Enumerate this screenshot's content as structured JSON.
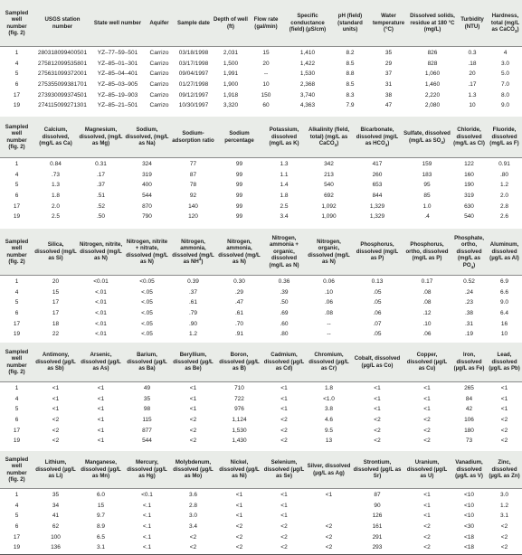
{
  "blocks": [
    {
      "headers": [
        "Sampled well number (fig. 2)",
        "USGS station number",
        "State well number",
        "Aquifer",
        "Sample date",
        "Depth of well (ft)",
        "Flow rate (gal/min)",
        "Specific conductance (field) (µS/cm)",
        "pH (field) (standard units)",
        "Water temperature (°C)",
        "Dissolved solids, residue at 180 °C (mg/L)",
        "Turbidity (NTU)",
        "Hardness, total (mg/L as CaCO<sub>3</sub>)"
      ],
      "rows": [
        [
          "1",
          "280318099400501",
          "YZ–77–59–501",
          "Carrizo",
          "03/18/1998",
          "2,031",
          "15",
          "1,410",
          "8.2",
          "35",
          "826",
          "0.3",
          "4"
        ],
        [
          "4",
          "275812099535801",
          "YZ–85–01–301",
          "Carrizo",
          "03/17/1998",
          "1,500",
          "20",
          "1,422",
          "8.5",
          "29",
          "828",
          ".18",
          "3.0"
        ],
        [
          "5",
          "275631099372001",
          "YZ–85–04–401",
          "Carrizo",
          "09/04/1997",
          "1,991",
          "--",
          "1,530",
          "8.8",
          "37",
          "1,060",
          "20",
          "5.0"
        ],
        [
          "6",
          "275355099381701",
          "YZ–85–03–905",
          "Carrizo",
          "01/27/1998",
          "1,900",
          "10",
          "2,368",
          "8.5",
          "31",
          "1,460",
          ".17",
          "7.0"
        ],
        [
          "17",
          "273930099374501",
          "YZ–85–19–903",
          "Carrizo",
          "09/12/1997",
          "1,918",
          "150",
          "3,740",
          "8.3",
          "38",
          "2,220",
          "1.3",
          "8.0"
        ],
        [
          "19",
          "274115099271301",
          "YZ–85–21–501",
          "Carrizo",
          "10/30/1997",
          "3,320",
          "60",
          "4,363",
          "7.9",
          "47",
          "2,080",
          "10",
          "9.0"
        ]
      ]
    },
    {
      "headers": [
        "Sampled well number (fig. 2)",
        "Calcium, dissolved, (mg/L as Ca)",
        "Magnesium, dissolved, (mg/L as Mg)",
        "Sodium, dissolved, (mg/L as Na)",
        "Sodium-adsorption ratio",
        "Sodium percentage",
        "Potassium, dissolved (mg/L as K)",
        "Alkalinity (field, total) (mg/L as CaCO<sub>3</sub>)",
        "Bicarbonate, dissolved (mg/L as HCO<sub>3</sub>)",
        "Sulfate, dissolved (mg/L as SO<sub>4</sub>)",
        "Chloride, dissolved (mg/L as Cl)",
        "Fluoride, dissolved (mg/L as F)"
      ],
      "rows": [
        [
          "1",
          "0.84",
          "0.31",
          "324",
          "77",
          "99",
          "1.3",
          "342",
          "417",
          "159",
          "122",
          "0.91"
        ],
        [
          "4",
          ".73",
          ".17",
          "319",
          "87",
          "99",
          "1.1",
          "213",
          "260",
          "183",
          "160",
          ".80"
        ],
        [
          "5",
          "1.3",
          ".37",
          "400",
          "78",
          "99",
          "1.4",
          "540",
          "653",
          "95",
          "190",
          "1.2"
        ],
        [
          "6",
          "1.8",
          ".51",
          "544",
          "92",
          "99",
          "1.8",
          "692",
          "844",
          "85",
          "319",
          "2.0"
        ],
        [
          "17",
          "2.0",
          ".52",
          "870",
          "140",
          "99",
          "2.5",
          "1,092",
          "1,329",
          "1.0",
          "630",
          "2.8"
        ],
        [
          "19",
          "2.5",
          ".50",
          "790",
          "120",
          "99",
          "3.4",
          "1,090",
          "1,329",
          ".4",
          "540",
          "2.6"
        ]
      ]
    },
    {
      "headers": [
        "Sampled well number (fig. 2)",
        "Silica, dissolved (mg/L as Si)",
        "Nitrogen, nitrite, dissolved (mg/L as N)",
        "Nitrogen, nitrite + nitrate, dissolved (mg/L as N)",
        "Nitrogen, ammonia, dissolved (mg/L as NH<sup>4</sup>)",
        "Nitrogen, ammonia, dissolved (mg/L as N)",
        "Nitrogen, ammonia + organic, dissolved (mg/L as N)",
        "Nitrogen, organic, dissolved (mg/L as N)",
        "Phosphorus, dissolved (mg/L as P)",
        "Phosphorus, ortho, dissolved (mg/L as P)",
        "Phosphate, ortho, dissolved (mg/L as PO<sub>4</sub>)",
        "Aluminum, dissolved (µg/L as Al)"
      ],
      "rows": [
        [
          "1",
          "20",
          "<0.01",
          "<0.05",
          "0.39",
          "0.30",
          "0.36",
          "0.06",
          "0.13",
          "0.17",
          "0.52",
          "6.9"
        ],
        [
          "4",
          "15",
          "<.01",
          "<.05",
          ".37",
          ".29",
          ".39",
          ".10",
          ".05",
          ".08",
          ".24",
          "6.6"
        ],
        [
          "5",
          "17",
          "<.01",
          "<.05",
          ".61",
          ".47",
          ".50",
          ".06",
          ".05",
          ".08",
          ".23",
          "9.0"
        ],
        [
          "6",
          "17",
          "<.01",
          "<.05",
          ".79",
          ".61",
          ".69",
          ".08",
          ".06",
          ".12",
          ".38",
          "6.4"
        ],
        [
          "17",
          "18",
          "<.01",
          "<.05",
          ".90",
          ".70",
          ".60",
          "--",
          ".07",
          ".10",
          ".31",
          "16"
        ],
        [
          "19",
          "22",
          "<.01",
          "<.05",
          "1.2",
          ".91",
          ".80",
          "--",
          ".05",
          ".06",
          ".19",
          "10"
        ]
      ]
    },
    {
      "headers": [
        "Sampled well number (fig. 2)",
        "Antimony, dissolved (µg/L as Sb)",
        "Arsenic, dissolved (µg/L as As)",
        "Barium, dissolved (µg/L as Ba)",
        "Beryllium, dissolved (µg/L as Be)",
        "Boron, dissolved (µg/L as B)",
        "Cadmium, dissolved (µg/L as Cd)",
        "Chromium, dissolved (µg/L as Cr)",
        "Cobalt, dissolved (µg/L as Co)",
        "Copper, dissolved (µg/L as Cu)",
        "Iron, dissolved (µg/L as Fe)",
        "Lead, dissolved (µg/L as Pb)"
      ],
      "rows": [
        [
          "1",
          "<1",
          "<1",
          "49",
          "<1",
          "710",
          "<1",
          "1.8",
          "<1",
          "<1",
          "265",
          "<1"
        ],
        [
          "4",
          "<1",
          "<1",
          "35",
          "<1",
          "722",
          "<1",
          "<1.0",
          "<1",
          "<1",
          "84",
          "<1"
        ],
        [
          "5",
          "<1",
          "<1",
          "98",
          "<1",
          "976",
          "<1",
          "3.8",
          "<1",
          "<1",
          "42",
          "<1"
        ],
        [
          "6",
          "<2",
          "<1",
          "115",
          "<2",
          "1,124",
          "<2",
          "4.6",
          "<2",
          "<2",
          "106",
          "<2"
        ],
        [
          "17",
          "<2",
          "<1",
          "877",
          "<2",
          "1,530",
          "<2",
          "9.5",
          "<2",
          "<2",
          "180",
          "<2"
        ],
        [
          "19",
          "<2",
          "<1",
          "544",
          "<2",
          "1,430",
          "<2",
          "13",
          "<2",
          "<2",
          "73",
          "<2"
        ]
      ]
    },
    {
      "headers": [
        "Sampled well number (fig. 2)",
        "Lithium, dissolved (µg/L as Li)",
        "Manganese, dissolved (µg/L as Mn)",
        "Mercury, dissolved (µg/L as Hg)",
        "Molybdenum, dissolved (µg/L as Mo)",
        "Nickel, dissolved (µg/L as Ni)",
        "Selenium, dissolved (µg/L as Se)",
        "Silver, dissolved (µg/L as Ag)",
        "Strontium, dissolved (µg/L as Sr)",
        "Uranium, dissolved (µg/L as U)",
        "Vanadium, dissolved (µg/L as V)",
        "Zinc, dissolved (µg/L as Zn)"
      ],
      "rows": [
        [
          "1",
          "35",
          "6.0",
          "<0.1",
          "3.6",
          "<1",
          "<1",
          "<1",
          "87",
          "<1",
          "<10",
          "3.0"
        ],
        [
          "4",
          "34",
          "15",
          "<.1",
          "2.8",
          "<1",
          "<1",
          "",
          "90",
          "<1",
          "<10",
          "1.2"
        ],
        [
          "5",
          "41",
          "9.7",
          "<.1",
          "3.0",
          "<1",
          "<1",
          "",
          "126",
          "<1",
          "<10",
          "3.1"
        ],
        [
          "6",
          "62",
          "8.9",
          "<.1",
          "3.4",
          "<2",
          "<2",
          "<2",
          "161",
          "<2",
          "<30",
          "<2"
        ],
        [
          "17",
          "100",
          "6.5",
          "<.1",
          "<2",
          "<2",
          "<2",
          "<2",
          "291",
          "<2",
          "<18",
          "<2"
        ],
        [
          "19",
          "136",
          "3.1",
          "<.1",
          "<2",
          "<2",
          "<2",
          "<2",
          "293",
          "<2",
          "<18",
          "<2"
        ]
      ]
    }
  ]
}
